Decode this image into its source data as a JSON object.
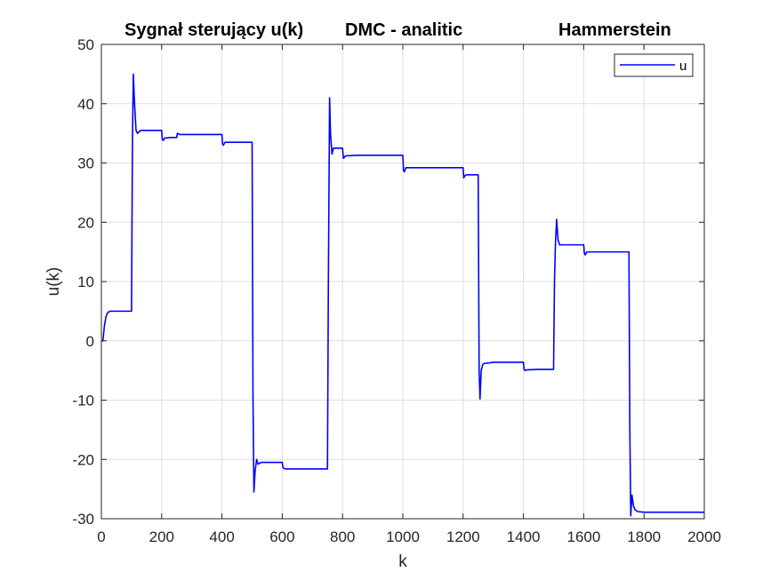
{
  "figure": {
    "title_parts": [
      "Sygnał sterujący u(k)",
      "DMC - analitic",
      "Hammerstein"
    ]
  },
  "chart_data": {
    "type": "line",
    "title": "Sygnał sterujący u(k)    DMC - analitic             Hammerstein",
    "xlabel": "k",
    "ylabel": "u(k)",
    "xlim": [
      0,
      2000
    ],
    "ylim": [
      -30,
      50
    ],
    "xticks": [
      0,
      200,
      400,
      600,
      800,
      1000,
      1200,
      1400,
      1600,
      1800,
      2000
    ],
    "yticks": [
      -30,
      -20,
      -10,
      0,
      10,
      20,
      30,
      40,
      50
    ],
    "grid": true,
    "legend_position": "top-right",
    "series": [
      {
        "name": "u",
        "color": "#0000ff",
        "x": [
          0,
          5,
          10,
          15,
          20,
          25,
          30,
          40,
          60,
          80,
          100,
          100,
          103,
          106,
          110,
          115,
          120,
          130,
          160,
          200,
          202,
          205,
          210,
          230,
          250,
          252,
          260,
          300,
          350,
          400,
          402,
          405,
          410,
          430,
          450,
          500,
          500,
          503,
          506,
          510,
          515,
          520,
          530,
          550,
          600,
          602,
          605,
          610,
          650,
          700,
          750,
          750,
          753,
          757,
          760,
          765,
          770,
          780,
          800,
          803,
          810,
          850,
          900,
          1000,
          1002,
          1005,
          1010,
          1050,
          1100,
          1200,
          1202,
          1205,
          1210,
          1230,
          1250,
          1250,
          1253,
          1256,
          1260,
          1265,
          1270,
          1290,
          1300,
          1350,
          1400,
          1402,
          1405,
          1410,
          1450,
          1500,
          1500,
          1503,
          1506,
          1510,
          1515,
          1520,
          1530,
          1560,
          1600,
          1602,
          1605,
          1610,
          1650,
          1700,
          1750,
          1750,
          1753,
          1756,
          1760,
          1765,
          1770,
          1780,
          1800,
          1850,
          1900,
          1950,
          2000
        ],
        "y": [
          0,
          0,
          2.5,
          4,
          4.7,
          4.9,
          5,
          5,
          5,
          5,
          5,
          5,
          33,
          45,
          40,
          35.5,
          35,
          35.5,
          35.5,
          35.5,
          34,
          33.8,
          34.2,
          34.3,
          34.3,
          35,
          34.8,
          34.8,
          34.8,
          34.8,
          33.2,
          33,
          33.5,
          33.5,
          33.5,
          33.5,
          33.5,
          -10,
          -25.5,
          -22,
          -20,
          -20.8,
          -20.5,
          -20.5,
          -20.5,
          -21.3,
          -21.5,
          -21.6,
          -21.6,
          -21.6,
          -21.6,
          -21.6,
          10,
          41,
          35,
          31.5,
          32.5,
          32.5,
          32.5,
          30.8,
          31.2,
          31.3,
          31.3,
          31.3,
          28.8,
          28.5,
          29.2,
          29.2,
          29.2,
          29.2,
          27.5,
          27.8,
          28,
          28,
          28,
          28,
          -5,
          -9.8,
          -5,
          -4,
          -3.8,
          -3.7,
          -3.6,
          -3.6,
          -3.6,
          -4.8,
          -5,
          -4.9,
          -4.8,
          -4.8,
          -4.8,
          10,
          16,
          20.5,
          17,
          16.2,
          16.2,
          16.2,
          16.2,
          14.8,
          14.5,
          15,
          15,
          15,
          15,
          15,
          -15,
          -29.5,
          -26,
          -27.8,
          -28.5,
          -28.8,
          -28.9,
          -28.9,
          -28.9,
          -28.9,
          -28.9
        ]
      }
    ]
  }
}
